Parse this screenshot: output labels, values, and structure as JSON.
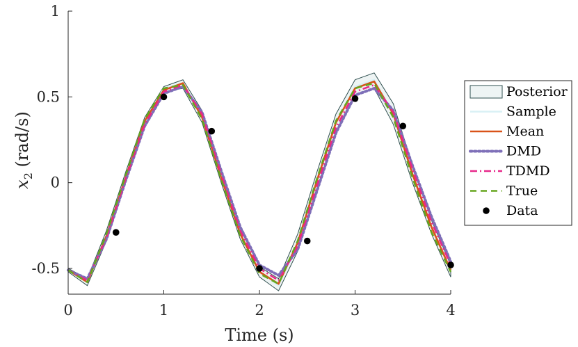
{
  "chart_data": {
    "type": "line",
    "title": "",
    "xlabel": "Time (s)",
    "ylabel_var": "x",
    "ylabel_sub": "2",
    "ylabel_unit": " (rad/s)",
    "xlim": [
      0,
      4
    ],
    "ylim": [
      -0.65,
      1
    ],
    "xticks": [
      0,
      1,
      2,
      3,
      4
    ],
    "xtick_labels": [
      "0",
      "1",
      "2",
      "3",
      "4"
    ],
    "yticks": [
      -0.5,
      0,
      0.5,
      1
    ],
    "ytick_labels": [
      "-0.5",
      "0",
      "0.5",
      "1"
    ],
    "grid": false,
    "legend_position": "right",
    "x": [
      0,
      0.2,
      0.4,
      0.6,
      0.8,
      1.0,
      1.2,
      1.4,
      1.6,
      1.8,
      2.0,
      2.2,
      2.4,
      2.6,
      2.8,
      3.0,
      3.2,
      3.4,
      3.6,
      3.8,
      4.0
    ],
    "series": [
      {
        "name": "Posterior",
        "style": "band",
        "color": "#2f4f4f",
        "fill": "#eef4f4",
        "lower": [
          -0.52,
          -0.6,
          -0.34,
          0.0,
          0.33,
          0.53,
          0.55,
          0.35,
          0.0,
          -0.33,
          -0.55,
          -0.63,
          -0.4,
          -0.04,
          0.3,
          0.51,
          0.55,
          0.34,
          0.0,
          -0.3,
          -0.55
        ],
        "upper": [
          -0.5,
          -0.56,
          -0.28,
          0.06,
          0.38,
          0.56,
          0.6,
          0.42,
          0.07,
          -0.27,
          -0.49,
          -0.56,
          -0.3,
          0.06,
          0.4,
          0.6,
          0.64,
          0.46,
          0.1,
          -0.22,
          -0.48
        ]
      },
      {
        "name": "Sample",
        "style": "solid",
        "color": "#d8f0f5",
        "values": [
          -0.51,
          -0.58,
          -0.31,
          0.03,
          0.36,
          0.55,
          0.58,
          0.39,
          0.04,
          -0.3,
          -0.52,
          -0.6,
          -0.35,
          0.01,
          0.35,
          0.56,
          0.6,
          0.4,
          0.05,
          -0.26,
          -0.51
        ]
      },
      {
        "name": "Mean",
        "style": "solid",
        "color": "#d95319",
        "values": [
          -0.51,
          -0.58,
          -0.31,
          0.03,
          0.36,
          0.54,
          0.58,
          0.38,
          0.03,
          -0.3,
          -0.52,
          -0.59,
          -0.35,
          0.01,
          0.35,
          0.55,
          0.59,
          0.4,
          0.05,
          -0.26,
          -0.51
        ]
      },
      {
        "name": "DMD",
        "style": "dotted",
        "color": "#7e6fb8",
        "values": [
          -0.51,
          -0.56,
          -0.33,
          0.01,
          0.33,
          0.52,
          0.56,
          0.41,
          0.07,
          -0.26,
          -0.48,
          -0.54,
          -0.39,
          -0.05,
          0.29,
          0.51,
          0.55,
          0.42,
          0.1,
          -0.2,
          -0.46
        ]
      },
      {
        "name": "TDMD",
        "style": "dashdot",
        "color": "#e7298a",
        "values": [
          -0.51,
          -0.57,
          -0.32,
          0.02,
          0.34,
          0.53,
          0.57,
          0.4,
          0.05,
          -0.28,
          -0.5,
          -0.57,
          -0.37,
          -0.02,
          0.32,
          0.53,
          0.57,
          0.41,
          0.08,
          -0.23,
          -0.48
        ]
      },
      {
        "name": "True",
        "style": "dashed",
        "color": "#66a61e",
        "values": [
          -0.51,
          -0.58,
          -0.3,
          0.04,
          0.37,
          0.55,
          0.57,
          0.37,
          0.02,
          -0.31,
          -0.53,
          -0.59,
          -0.34,
          0.02,
          0.36,
          0.55,
          0.58,
          0.38,
          0.03,
          -0.29,
          -0.52
        ]
      },
      {
        "name": "Data",
        "style": "markers",
        "color": "#000000",
        "x": [
          0.5,
          1.0,
          1.5,
          2.0,
          2.5,
          3.0,
          3.5,
          4.0
        ],
        "values": [
          -0.29,
          0.5,
          0.3,
          -0.5,
          -0.34,
          0.49,
          0.33,
          -0.48
        ]
      }
    ]
  }
}
